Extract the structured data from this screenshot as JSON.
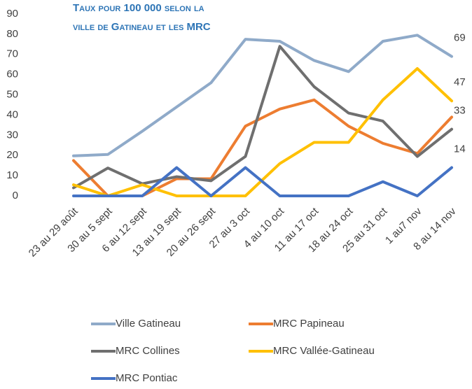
{
  "chart_data": {
    "type": "line",
    "title": [
      "Taux pour 100 000 selon la",
      "ville de Gatineau et les MRC"
    ],
    "categories": [
      "23 au 29 août",
      "30 au 5 sept",
      "6 au 12 sept",
      "13 au 19 sept",
      "20 au 26 sept",
      "27 au 3 oct",
      "4 au 10 oct",
      "11 au 17 oct",
      "18 au 24 oct",
      "25 au 31 oct",
      "1 au7 nov",
      "8 au 14 nov"
    ],
    "series": [
      {
        "name": "Ville Gatineau",
        "color": "#8faac9",
        "show_last_label": true,
        "values": [
          19.8,
          20.5,
          32,
          44,
          56,
          77.5,
          76.5,
          67,
          61.5,
          76.5,
          79.5,
          69
        ]
      },
      {
        "name": "MRC Papineau",
        "color": "#ed7d31",
        "show_last_label": false,
        "values": [
          17.5,
          0,
          0,
          8.5,
          8.5,
          34.5,
          43,
          47.5,
          34.5,
          26,
          21,
          39
        ]
      },
      {
        "name": "MRC Collines",
        "color": "#6f6f6f",
        "show_last_label": true,
        "values": [
          4,
          13.8,
          6,
          9.5,
          7.5,
          19.5,
          74,
          54,
          41,
          37,
          19.5,
          33
        ]
      },
      {
        "name": "MRC Vallée-Gatineau",
        "color": "#ffc000",
        "show_last_label": true,
        "values": [
          5.5,
          0,
          5.5,
          0,
          0,
          0,
          16,
          26.5,
          26.5,
          47.5,
          63,
          47
        ]
      },
      {
        "name": "MRC Pontiac",
        "color": "#4472c4",
        "show_last_label": true,
        "values": [
          0,
          0,
          0,
          14,
          0,
          14,
          0,
          0,
          0,
          7,
          0,
          14
        ]
      }
    ],
    "ylim": [
      0,
      90
    ],
    "yticks": [
      0,
      10,
      20,
      30,
      40,
      50,
      60,
      70,
      80,
      90
    ],
    "grid": false
  }
}
